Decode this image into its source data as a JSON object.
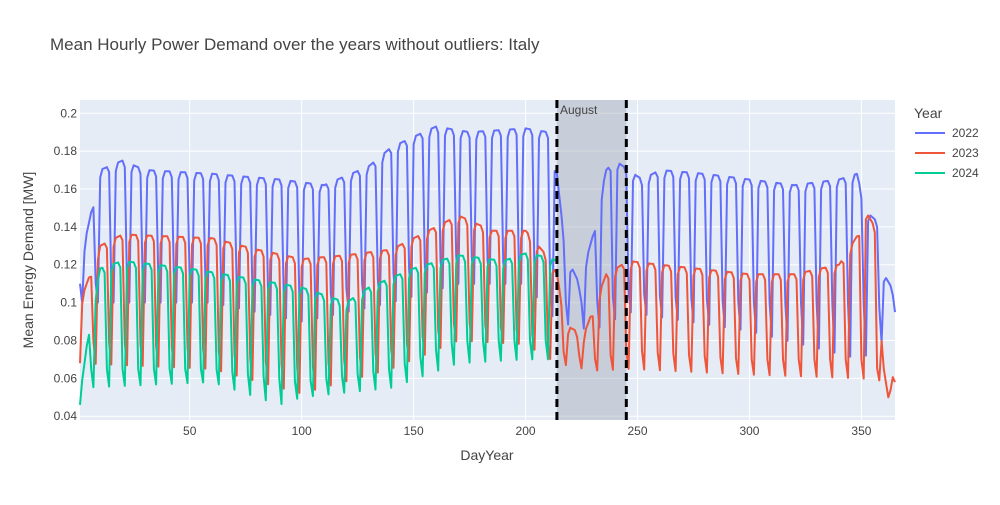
{
  "chart_data": {
    "type": "line",
    "title": "Mean Hourly Power Demand over the years without outliers: Italy",
    "xlabel": "DayYear",
    "ylabel": "Mean Energy Demand [MW]",
    "xlim": [
      1,
      365
    ],
    "ylim": [
      0.038,
      0.207
    ],
    "x_ticks": [
      50,
      100,
      150,
      200,
      250,
      300,
      350
    ],
    "y_ticks": [
      0.04,
      0.06,
      0.08,
      0.1,
      0.12,
      0.14,
      0.16,
      0.18,
      0.2
    ],
    "grid": true,
    "legend": {
      "title": "Year",
      "placement": "right"
    },
    "annotation": {
      "label": "August",
      "x_start": 214,
      "x_end": 245
    },
    "series": [
      {
        "name": "2022",
        "color": "#636efa",
        "start_weekday": 5,
        "weekday_levels": [
          [
            1,
            0.12
          ],
          [
            10,
            0.17
          ],
          [
            20,
            0.175
          ],
          [
            30,
            0.17
          ],
          [
            60,
            0.168
          ],
          [
            90,
            0.165
          ],
          [
            110,
            0.162
          ],
          [
            130,
            0.172
          ],
          [
            140,
            0.182
          ],
          [
            160,
            0.193
          ],
          [
            175,
            0.19
          ],
          [
            200,
            0.192
          ],
          [
            210,
            0.19
          ],
          [
            214,
            0.168
          ],
          [
            218,
            0.125
          ],
          [
            224,
            0.11
          ],
          [
            230,
            0.135
          ],
          [
            236,
            0.17
          ],
          [
            240,
            0.175
          ],
          [
            246,
            0.17
          ],
          [
            252,
            0.165
          ],
          [
            260,
            0.17
          ],
          [
            280,
            0.168
          ],
          [
            300,
            0.165
          ],
          [
            320,
            0.162
          ],
          [
            340,
            0.165
          ],
          [
            348,
            0.168
          ],
          [
            352,
            0.148
          ],
          [
            358,
            0.142
          ],
          [
            360,
            0.115
          ],
          [
            365,
            0.105
          ]
        ],
        "saturday_levels": [
          [
            1,
            0.11
          ],
          [
            60,
            0.112
          ],
          [
            100,
            0.1
          ],
          [
            140,
            0.115
          ],
          [
            170,
            0.125
          ],
          [
            200,
            0.12
          ],
          [
            214,
            0.1
          ],
          [
            230,
            0.1
          ],
          [
            246,
            0.105
          ],
          [
            300,
            0.1
          ],
          [
            350,
            0.1
          ],
          [
            365,
            0.095
          ]
        ],
        "sunday_levels": [
          [
            1,
            0.1
          ],
          [
            60,
            0.1
          ],
          [
            100,
            0.09
          ],
          [
            140,
            0.1
          ],
          [
            170,
            0.11
          ],
          [
            200,
            0.11
          ],
          [
            214,
            0.09
          ],
          [
            230,
            0.085
          ],
          [
            246,
            0.095
          ],
          [
            300,
            0.085
          ],
          [
            350,
            0.07
          ],
          [
            365,
            0.085
          ]
        ]
      },
      {
        "name": "2023",
        "color": "#ef553b",
        "start_weekday": 6,
        "weekday_levels": [
          [
            1,
            0.1
          ],
          [
            10,
            0.13
          ],
          [
            20,
            0.136
          ],
          [
            40,
            0.135
          ],
          [
            60,
            0.134
          ],
          [
            80,
            0.128
          ],
          [
            100,
            0.123
          ],
          [
            120,
            0.125
          ],
          [
            140,
            0.128
          ],
          [
            160,
            0.14
          ],
          [
            170,
            0.146
          ],
          [
            185,
            0.138
          ],
          [
            200,
            0.138
          ],
          [
            210,
            0.124
          ],
          [
            214,
            0.115
          ],
          [
            218,
            0.088
          ],
          [
            226,
            0.083
          ],
          [
            236,
            0.115
          ],
          [
            246,
            0.122
          ],
          [
            260,
            0.12
          ],
          [
            300,
            0.115
          ],
          [
            320,
            0.115
          ],
          [
            340,
            0.12
          ],
          [
            348,
            0.135
          ],
          [
            352,
            0.148
          ],
          [
            356,
            0.14
          ],
          [
            360,
            0.065
          ],
          [
            362,
            0.05
          ],
          [
            365,
            0.07
          ]
        ],
        "saturday_levels": [
          [
            1,
            0.08
          ],
          [
            60,
            0.075
          ],
          [
            100,
            0.065
          ],
          [
            140,
            0.075
          ],
          [
            170,
            0.09
          ],
          [
            200,
            0.085
          ],
          [
            214,
            0.075
          ],
          [
            230,
            0.07
          ],
          [
            246,
            0.075
          ],
          [
            300,
            0.07
          ],
          [
            350,
            0.07
          ],
          [
            365,
            0.06
          ]
        ],
        "sunday_levels": [
          [
            1,
            0.068
          ],
          [
            60,
            0.065
          ],
          [
            100,
            0.052
          ],
          [
            140,
            0.065
          ],
          [
            170,
            0.08
          ],
          [
            200,
            0.078
          ],
          [
            214,
            0.068
          ],
          [
            230,
            0.064
          ],
          [
            246,
            0.065
          ],
          [
            300,
            0.062
          ],
          [
            350,
            0.06
          ],
          [
            365,
            0.058
          ]
        ]
      },
      {
        "name": "2024",
        "color": "#00cc96",
        "start_weekday": 0,
        "weekday_levels": [
          [
            1,
            0.05
          ],
          [
            5,
            0.086
          ],
          [
            10,
            0.118
          ],
          [
            20,
            0.122
          ],
          [
            50,
            0.118
          ],
          [
            80,
            0.112
          ],
          [
            100,
            0.108
          ],
          [
            120,
            0.1
          ],
          [
            130,
            0.108
          ],
          [
            150,
            0.118
          ],
          [
            170,
            0.125
          ],
          [
            190,
            0.122
          ],
          [
            200,
            0.126
          ],
          [
            210,
            0.124
          ],
          [
            214,
            0.122
          ]
        ],
        "saturday_levels": [
          [
            1,
            0.065
          ],
          [
            60,
            0.065
          ],
          [
            100,
            0.058
          ],
          [
            140,
            0.065
          ],
          [
            170,
            0.08
          ],
          [
            200,
            0.08
          ],
          [
            214,
            0.08
          ]
        ],
        "sunday_levels": [
          [
            1,
            0.055
          ],
          [
            60,
            0.058
          ],
          [
            90,
            0.046
          ],
          [
            100,
            0.05
          ],
          [
            140,
            0.055
          ],
          [
            170,
            0.068
          ],
          [
            200,
            0.07
          ],
          [
            214,
            0.07
          ]
        ],
        "last_day": 214
      }
    ]
  }
}
